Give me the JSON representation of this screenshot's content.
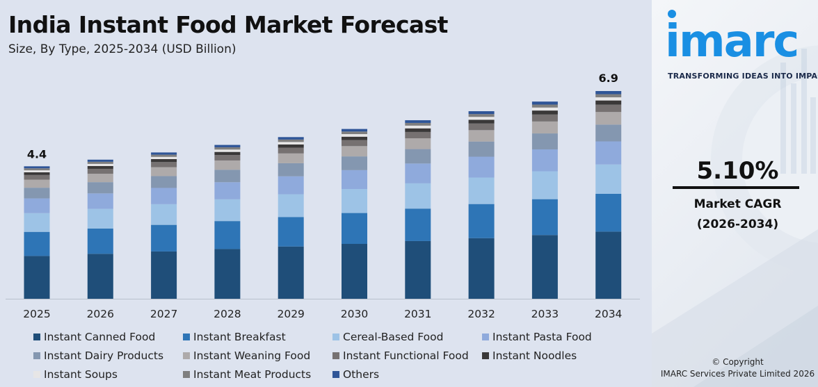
{
  "title": "India Instant Food Market Forecast",
  "subtitle": "Size, By Type, 2025-2034 (USD Billion)",
  "brand": {
    "logo_text": "imarc",
    "tagline": "TRANSFORMING IDEAS INTO IMPACT",
    "color": "#1a8fe3"
  },
  "cagr": {
    "value": "5.10%",
    "label": "Market CAGR",
    "period": "(2026-2034)"
  },
  "footer": {
    "copyright": "© Copyright",
    "company": "IMARC Services Private Limited 2026"
  },
  "chart_data": {
    "type": "bar",
    "stacked": true,
    "categories": [
      "2025",
      "2026",
      "2027",
      "2028",
      "2029",
      "2030",
      "2031",
      "2032",
      "2033",
      "2034"
    ],
    "totals": [
      4.4,
      4.62,
      4.86,
      5.11,
      5.37,
      5.64,
      5.93,
      6.23,
      6.55,
      6.9
    ],
    "total_labels": [
      {
        "category": "2025",
        "text": "4.4"
      },
      {
        "category": "2034",
        "text": "6.9"
      }
    ],
    "series": [
      {
        "name": "Instant Canned Food",
        "color": "#1f4e79",
        "share": 0.32
      },
      {
        "name": "Instant Breakfast",
        "color": "#2e75b6",
        "share": 0.18
      },
      {
        "name": "Cereal-Based Food",
        "color": "#9dc3e6",
        "share": 0.14
      },
      {
        "name": "Instant Pasta Food",
        "color": "#8faadc",
        "share": 0.11
      },
      {
        "name": "Instant Dairy Products",
        "color": "#8497b0",
        "share": 0.08
      },
      {
        "name": "Instant Weaning Food",
        "color": "#aeaaaa",
        "share": 0.06
      },
      {
        "name": "Instant Functional Food",
        "color": "#767171",
        "share": 0.035
      },
      {
        "name": "Instant Noodles",
        "color": "#3a3838",
        "share": 0.02
      },
      {
        "name": "Instant Soups",
        "color": "#e7e6e6",
        "share": 0.015
      },
      {
        "name": "Instant Meat Products",
        "color": "#7f7f7f",
        "share": 0.015
      },
      {
        "name": "Others",
        "color": "#2f5597",
        "share": 0.015
      }
    ],
    "legend_position": "bottom",
    "grid": false
  }
}
